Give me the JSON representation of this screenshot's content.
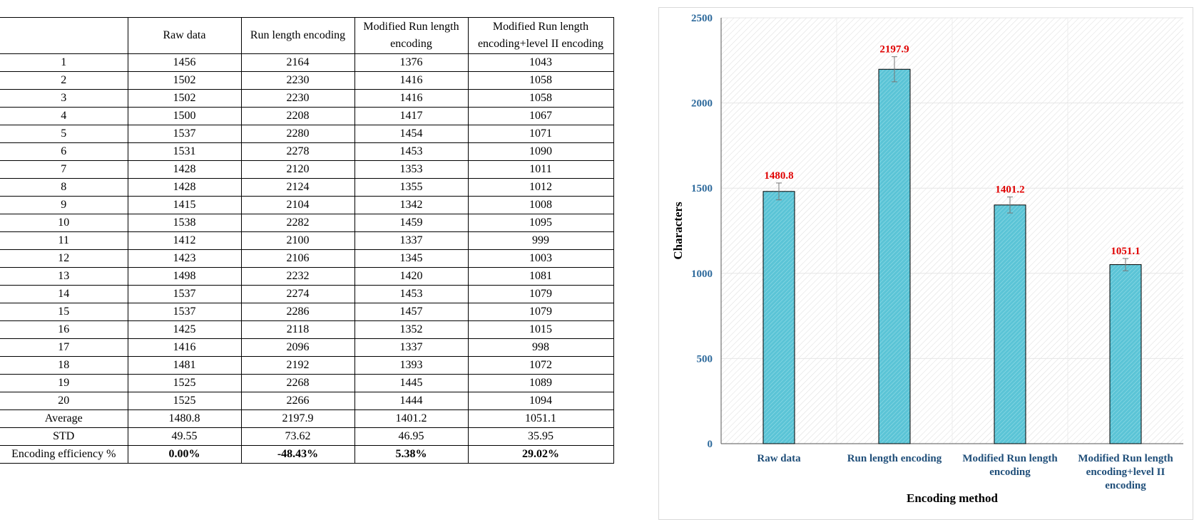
{
  "table": {
    "headers": [
      "",
      "Raw data",
      "Run length encoding",
      "Modified Run length encoding",
      "Modified Run length encoding+level II encoding"
    ],
    "rows": [
      [
        "1",
        "1456",
        "2164",
        "1376",
        "1043"
      ],
      [
        "2",
        "1502",
        "2230",
        "1416",
        "1058"
      ],
      [
        "3",
        "1502",
        "2230",
        "1416",
        "1058"
      ],
      [
        "4",
        "1500",
        "2208",
        "1417",
        "1067"
      ],
      [
        "5",
        "1537",
        "2280",
        "1454",
        "1071"
      ],
      [
        "6",
        "1531",
        "2278",
        "1453",
        "1090"
      ],
      [
        "7",
        "1428",
        "2120",
        "1353",
        "1011"
      ],
      [
        "8",
        "1428",
        "2124",
        "1355",
        "1012"
      ],
      [
        "9",
        "1415",
        "2104",
        "1342",
        "1008"
      ],
      [
        "10",
        "1538",
        "2282",
        "1459",
        "1095"
      ],
      [
        "11",
        "1412",
        "2100",
        "1337",
        "999"
      ],
      [
        "12",
        "1423",
        "2106",
        "1345",
        "1003"
      ],
      [
        "13",
        "1498",
        "2232",
        "1420",
        "1081"
      ],
      [
        "14",
        "1537",
        "2274",
        "1453",
        "1079"
      ],
      [
        "15",
        "1537",
        "2286",
        "1457",
        "1079"
      ],
      [
        "16",
        "1425",
        "2118",
        "1352",
        "1015"
      ],
      [
        "17",
        "1416",
        "2096",
        "1337",
        "998"
      ],
      [
        "18",
        "1481",
        "2192",
        "1393",
        "1072"
      ],
      [
        "19",
        "1525",
        "2268",
        "1445",
        "1089"
      ],
      [
        "20",
        "1525",
        "2266",
        "1444",
        "1094"
      ]
    ],
    "stats": [
      [
        "Average",
        "1480.8",
        "2197.9",
        "1401.2",
        "1051.1"
      ],
      [
        "STD",
        "49.55",
        "73.62",
        "46.95",
        "35.95"
      ]
    ],
    "efficiency": [
      "Encoding efficiency %",
      "0.00%",
      "-48.43%",
      "5.38%",
      "29.02%"
    ]
  },
  "chart_data": {
    "type": "bar",
    "categories": [
      [
        "Raw data"
      ],
      [
        "Run length encoding"
      ],
      [
        "Modified Run length",
        "encoding"
      ],
      [
        "Modified Run length",
        "encoding+level II",
        "encoding"
      ]
    ],
    "values": [
      1480.8,
      2197.9,
      1401.2,
      1051.1
    ],
    "data_labels": [
      "1480.8",
      "2197.9",
      "1401.2",
      "1051.1"
    ],
    "error": [
      49.55,
      73.62,
      46.95,
      35.95
    ],
    "xlabel": "Encoding method",
    "ylabel": "Characters",
    "ylim": [
      0,
      2500
    ],
    "yticks": [
      0,
      500,
      1000,
      1500,
      2000,
      2500
    ],
    "grid": true,
    "bar_color": "#5bc4d6"
  }
}
